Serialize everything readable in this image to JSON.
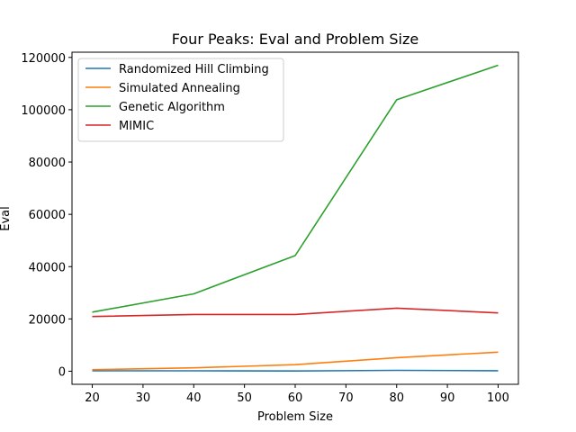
{
  "chart_data": {
    "type": "line",
    "title": "Four Peaks: Eval and Problem Size",
    "xlabel": "Problem Size",
    "ylabel": "Eval",
    "x": [
      20,
      40,
      60,
      80,
      100
    ],
    "xlim": [
      16,
      104
    ],
    "ylim": [
      -5000,
      122000
    ],
    "xticks": [
      20,
      30,
      40,
      50,
      60,
      70,
      80,
      90,
      100
    ],
    "yticks": [
      0,
      20000,
      40000,
      60000,
      80000,
      100000,
      120000
    ],
    "grid": false,
    "legend_position": "top-left",
    "series": [
      {
        "name": "Randomized Hill Climbing",
        "color": "#1f77b4",
        "values": [
          150,
          150,
          80,
          350,
          200
        ]
      },
      {
        "name": "Simulated Annealing",
        "color": "#ff7f0e",
        "values": [
          600,
          1300,
          2500,
          5200,
          7300
        ]
      },
      {
        "name": "Genetic Algorithm",
        "color": "#2ca02c",
        "values": [
          22600,
          29600,
          44200,
          103800,
          117000
        ]
      },
      {
        "name": "MIMIC",
        "color": "#d62728",
        "values": [
          20900,
          21700,
          21700,
          24100,
          22300
        ]
      }
    ]
  }
}
